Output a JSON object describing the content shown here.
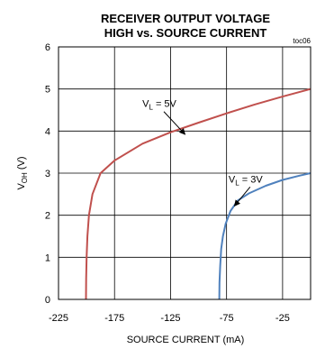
{
  "chart_data": {
    "type": "line",
    "title_line1": "RECEIVER OUTPUT VOLTAGE",
    "title_line2": "HIGH vs. SOURCE CURRENT",
    "tag": "toc06",
    "xlabel": "SOURCE CURRENT (mA)",
    "ylabel_main": "V",
    "ylabel_sub": "OH",
    "ylabel_unit": " (V)",
    "xlim": [
      -225,
      0
    ],
    "ylim": [
      0,
      6
    ],
    "x_ticks": [
      -225,
      -175,
      -125,
      -75,
      -25
    ],
    "x_tick_labels": [
      "-225",
      "-175",
      "-125",
      "-75",
      "-25"
    ],
    "y_ticks": [
      0,
      1,
      2,
      3,
      4,
      5,
      6
    ],
    "y_tick_labels": [
      "0",
      "1",
      "2",
      "3",
      "4",
      "5",
      "6"
    ],
    "grid": true,
    "series": [
      {
        "name": "VL = 5V",
        "color": "#c0504d",
        "points": [
          [
            -200.5,
            0
          ],
          [
            -200.3,
            0.5
          ],
          [
            -199.9,
            1.0
          ],
          [
            -199.2,
            1.5
          ],
          [
            -197.8,
            2.0
          ],
          [
            -194.7,
            2.5
          ],
          [
            -187.5,
            3.0
          ],
          [
            -175,
            3.3
          ],
          [
            -150,
            3.7
          ],
          [
            -125,
            3.97
          ],
          [
            -100,
            4.2
          ],
          [
            -75,
            4.42
          ],
          [
            -50,
            4.63
          ],
          [
            -25,
            4.82
          ],
          [
            0,
            5.0
          ]
        ]
      },
      {
        "name": "VL = 3V",
        "color": "#4f81bd",
        "points": [
          [
            -81.5,
            0
          ],
          [
            -81.3,
            0.4
          ],
          [
            -80.7,
            0.8
          ],
          [
            -79.8,
            1.2
          ],
          [
            -78.3,
            1.5
          ],
          [
            -75.8,
            1.8
          ],
          [
            -71.5,
            2.1
          ],
          [
            -65,
            2.35
          ],
          [
            -55,
            2.52
          ],
          [
            -40,
            2.7
          ],
          [
            -25,
            2.84
          ],
          [
            -10,
            2.94
          ],
          [
            0,
            3.0
          ]
        ]
      }
    ],
    "annotations": [
      {
        "main": "V",
        "sub": "L",
        "rest": " = 5V",
        "x": -135,
        "y": 4.57,
        "arrow_to": [
          -112,
          3.92
        ]
      },
      {
        "main": "V",
        "sub": "L",
        "rest": " = 3V",
        "x": -58,
        "y": 2.78,
        "arrow_to": [
          -68,
          2.22
        ]
      }
    ]
  }
}
